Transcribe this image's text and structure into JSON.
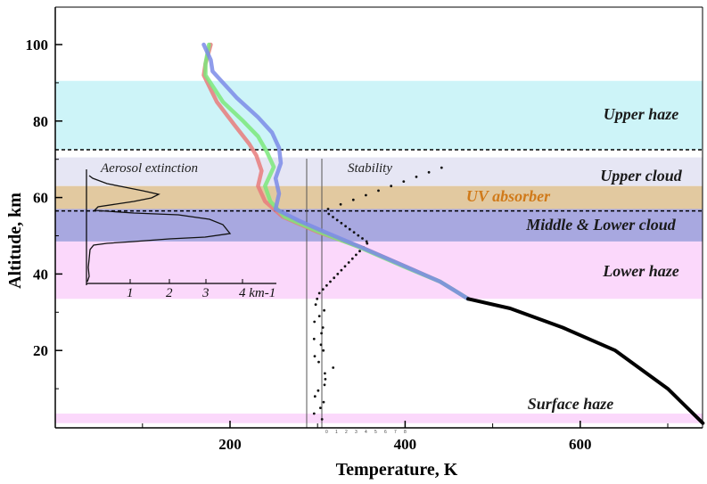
{
  "chart_data": {
    "type": "line",
    "xlabel": "Temperature, K",
    "ylabel": "Altitude, km",
    "xlim": [
      80,
      740
    ],
    "ylim": [
      0,
      110
    ],
    "x_ticks": [
      200,
      400,
      600
    ],
    "y_ticks": [
      20,
      40,
      60,
      80,
      100
    ],
    "layers": [
      {
        "name": "Upper haze",
        "y_bottom": 72.5,
        "y_top": 90.5,
        "color": "#cdf4f8"
      },
      {
        "name": "Upper cloud",
        "y_bottom": 63,
        "y_top": 70.5,
        "color": "#e6e6f4"
      },
      {
        "name": "UV absorber",
        "y_bottom": 57,
        "y_top": 63,
        "color": "#e2c9a0"
      },
      {
        "name": "Middle & Lower cloud",
        "y_bottom": 48.5,
        "y_top": 57,
        "color": "#a8a8e0"
      },
      {
        "name": "Lower haze",
        "y_bottom": 33.5,
        "y_top": 48.5,
        "color": "#fbd8fb"
      },
      {
        "name": "Surface haze",
        "y_bottom": 1,
        "y_top": 3.5,
        "color": "#fbd8fb"
      }
    ],
    "boundaries": [
      72.5,
      56.5
    ],
    "series": [
      {
        "color": "#e87b7b",
        "points": [
          [
            178,
            100
          ],
          [
            172,
            95
          ],
          [
            170,
            92
          ],
          [
            185,
            85
          ],
          [
            205,
            79
          ],
          [
            222,
            74
          ],
          [
            230,
            71
          ],
          [
            236,
            67
          ],
          [
            232,
            63
          ],
          [
            240,
            59
          ],
          [
            260,
            55
          ],
          [
            300,
            51
          ],
          [
            350,
            47
          ],
          [
            400,
            42
          ],
          [
            440,
            38
          ],
          [
            472,
            33.5
          ]
        ]
      },
      {
        "color": "#7be87b",
        "points": [
          [
            176,
            100
          ],
          [
            172,
            95
          ],
          [
            172,
            92
          ],
          [
            192,
            85
          ],
          [
            215,
            80
          ],
          [
            232,
            76
          ],
          [
            242,
            72
          ],
          [
            250,
            68
          ],
          [
            240,
            63
          ],
          [
            246,
            59
          ],
          [
            262,
            55
          ],
          [
            302,
            51
          ],
          [
            348,
            47
          ],
          [
            398,
            42
          ],
          [
            440,
            38
          ],
          [
            472,
            33.5
          ]
        ]
      },
      {
        "color": "#7b8be8",
        "points": [
          [
            170,
            100
          ],
          [
            178,
            96
          ],
          [
            180,
            93
          ],
          [
            208,
            86
          ],
          [
            232,
            81
          ],
          [
            248,
            77
          ],
          [
            256,
            73
          ],
          [
            258,
            69
          ],
          [
            252,
            65
          ],
          [
            256,
            61
          ],
          [
            252,
            57
          ],
          [
            278,
            54
          ],
          [
            308,
            51
          ],
          [
            350,
            47
          ],
          [
            400,
            42
          ],
          [
            440,
            38
          ],
          [
            472,
            33.5
          ]
        ]
      },
      {
        "color": "#000000",
        "points": [
          [
            472,
            33.5
          ],
          [
            520,
            31
          ],
          [
            580,
            26
          ],
          [
            640,
            20
          ],
          [
            700,
            10
          ],
          [
            740,
            1
          ]
        ]
      }
    ],
    "inset_aerosol": {
      "title": "Aerosol extinction",
      "ticks": [
        "1",
        "2",
        "3",
        "4 km-1"
      ]
    },
    "inset_stability": {
      "title": "Stability"
    }
  }
}
